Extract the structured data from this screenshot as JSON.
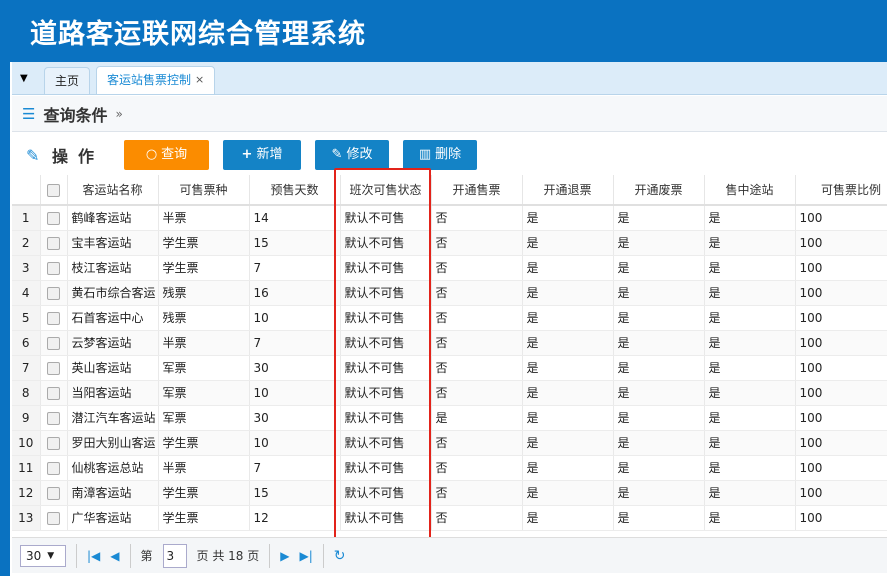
{
  "app": {
    "title": "道路客运联网综合管理系统"
  },
  "tabs": [
    {
      "label": "主页"
    },
    {
      "label": "客运站售票控制",
      "close": "×"
    }
  ],
  "query": {
    "title": "查询条件",
    "icon": "search-list-icon"
  },
  "toolbar": {
    "label": "操作",
    "query": "查询",
    "add": "新增",
    "edit": "修改",
    "delete": "删除"
  },
  "table": {
    "columns": [
      "客运站名称",
      "可售票种",
      "预售天数",
      "班次可售状态",
      "开通售票",
      "开通退票",
      "开通废票",
      "售中途站",
      "可售票比例"
    ],
    "rows": [
      [
        "1",
        "鹤峰客运站",
        "半票",
        "14",
        "默认不可售",
        "否",
        "是",
        "是",
        "是",
        "100"
      ],
      [
        "2",
        "宝丰客运站",
        "学生票",
        "15",
        "默认不可售",
        "否",
        "是",
        "是",
        "是",
        "100"
      ],
      [
        "3",
        "枝江客运站",
        "学生票",
        "7",
        "默认不可售",
        "否",
        "是",
        "是",
        "是",
        "100"
      ],
      [
        "4",
        "黄石市综合客运",
        "残票",
        "16",
        "默认不可售",
        "否",
        "是",
        "是",
        "是",
        "100"
      ],
      [
        "5",
        "石首客运中心",
        "残票",
        "10",
        "默认不可售",
        "否",
        "是",
        "是",
        "是",
        "100"
      ],
      [
        "6",
        "云梦客运站",
        "半票",
        "7",
        "默认不可售",
        "否",
        "是",
        "是",
        "是",
        "100"
      ],
      [
        "7",
        "英山客运站",
        "军票",
        "30",
        "默认不可售",
        "否",
        "是",
        "是",
        "是",
        "100"
      ],
      [
        "8",
        "当阳客运站",
        "军票",
        "10",
        "默认不可售",
        "否",
        "是",
        "是",
        "是",
        "100"
      ],
      [
        "9",
        "潜江汽车客运站",
        "军票",
        "30",
        "默认不可售",
        "是",
        "是",
        "是",
        "是",
        "100"
      ],
      [
        "10",
        "罗田大别山客运",
        "学生票",
        "10",
        "默认不可售",
        "否",
        "是",
        "是",
        "是",
        "100"
      ],
      [
        "11",
        "仙桃客运总站",
        "半票",
        "7",
        "默认不可售",
        "否",
        "是",
        "是",
        "是",
        "100"
      ],
      [
        "12",
        "南漳客运站",
        "学生票",
        "15",
        "默认不可售",
        "否",
        "是",
        "是",
        "是",
        "100"
      ],
      [
        "13",
        "广华客运站",
        "学生票",
        "12",
        "默认不可售",
        "否",
        "是",
        "是",
        "是",
        "100"
      ]
    ]
  },
  "highlight": {
    "column": "班次可售状态",
    "color": "#e2231a"
  },
  "pager": {
    "page_size": "30",
    "page_prefix": "第",
    "current_page": "3",
    "page_suffix": "页 共 18 页"
  }
}
